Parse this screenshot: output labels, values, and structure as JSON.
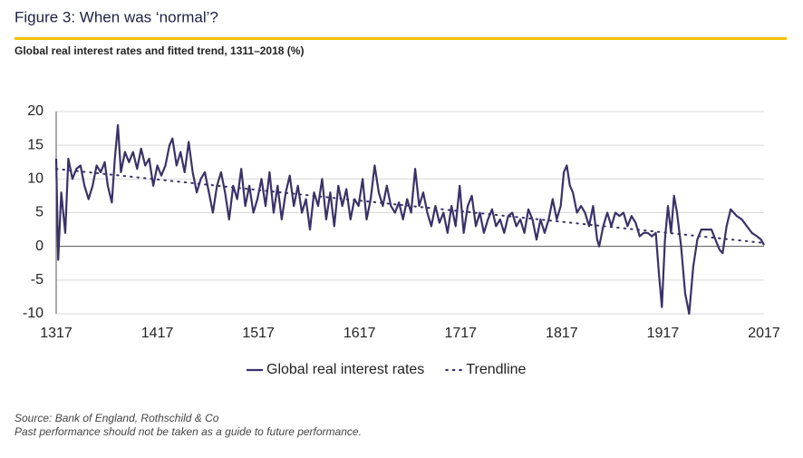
{
  "chart_data": {
    "type": "line",
    "title": "Figure 3: When was ‘normal’?",
    "subtitle": "Global real interest rates and fitted trend, 1311–2018 (%)",
    "source": "Source: Bank of England, Rothschild & Co",
    "note": "Past performance should not be taken as a guide to future performance.",
    "xlim": [
      1317,
      2017
    ],
    "xticks": [
      1317,
      1417,
      1517,
      1617,
      1717,
      1817,
      1917,
      2017
    ],
    "ylim": [
      -10,
      20
    ],
    "yticks": [
      -10,
      -5,
      0,
      5,
      10,
      15,
      20
    ],
    "grid": true,
    "legend": "bottom",
    "series": [
      {
        "name": "Global real interest rates",
        "color": "#3b3168",
        "style": "solid",
        "x": [
          1317,
          1319,
          1322,
          1326,
          1329,
          1333,
          1337,
          1341,
          1345,
          1349,
          1353,
          1357,
          1361,
          1365,
          1368,
          1372,
          1375,
          1378,
          1381,
          1385,
          1389,
          1393,
          1397,
          1401,
          1405,
          1409,
          1413,
          1417,
          1421,
          1425,
          1429,
          1432,
          1436,
          1440,
          1444,
          1448,
          1452,
          1456,
          1460,
          1464,
          1468,
          1472,
          1476,
          1480,
          1484,
          1488,
          1492,
          1496,
          1500,
          1504,
          1508,
          1512,
          1516,
          1520,
          1524,
          1528,
          1532,
          1536,
          1540,
          1544,
          1548,
          1552,
          1556,
          1560,
          1564,
          1568,
          1572,
          1576,
          1580,
          1584,
          1588,
          1592,
          1596,
          1600,
          1604,
          1608,
          1612,
          1616,
          1620,
          1624,
          1628,
          1632,
          1636,
          1640,
          1644,
          1648,
          1652,
          1656,
          1660,
          1664,
          1668,
          1672,
          1676,
          1680,
          1684,
          1688,
          1692,
          1696,
          1700,
          1704,
          1708,
          1712,
          1716,
          1720,
          1724,
          1728,
          1732,
          1736,
          1740,
          1744,
          1748,
          1752,
          1756,
          1760,
          1764,
          1768,
          1772,
          1776,
          1780,
          1784,
          1788,
          1792,
          1796,
          1800,
          1804,
          1808,
          1812,
          1816,
          1819,
          1822,
          1825,
          1828,
          1832,
          1836,
          1840,
          1844,
          1848,
          1852,
          1854,
          1858,
          1862,
          1866,
          1870,
          1874,
          1878,
          1882,
          1886,
          1890,
          1894,
          1898,
          1902,
          1906,
          1910,
          1913,
          1916,
          1919,
          1922,
          1925,
          1928,
          1931,
          1935,
          1939,
          1943,
          1947,
          1951,
          1955,
          1960,
          1965,
          1969,
          1973,
          1976,
          1980,
          1984,
          1990,
          1995,
          2000,
          2005,
          2010,
          2014,
          2017
        ],
        "values": [
          13,
          -2,
          8,
          2,
          13,
          10,
          11.5,
          12,
          9,
          7,
          9,
          12,
          11,
          12.5,
          9,
          6.5,
          13,
          18,
          11,
          14,
          12.5,
          14,
          11.5,
          14.5,
          12,
          13,
          9,
          12,
          10.5,
          12,
          15,
          16,
          12,
          14,
          11,
          15.5,
          11,
          8,
          10,
          11,
          8,
          5,
          9,
          11,
          8,
          4,
          9,
          7,
          11.5,
          6,
          9,
          5,
          7,
          10,
          6,
          11,
          5,
          9,
          4,
          8,
          10.5,
          6,
          9,
          5,
          7,
          2.5,
          8,
          6,
          10,
          4,
          8,
          3,
          9,
          6,
          8.5,
          4,
          7,
          6,
          10,
          4,
          7,
          12,
          8,
          6,
          9,
          6,
          5,
          6.5,
          4,
          7,
          5,
          11.5,
          6,
          8,
          5,
          3,
          6,
          3.5,
          5,
          2,
          6,
          3,
          9,
          2,
          6,
          7.5,
          3,
          5,
          2,
          4,
          5.5,
          3,
          4,
          2,
          4.5,
          5,
          3,
          4,
          2,
          5.5,
          4,
          1,
          4,
          2,
          4,
          7,
          4,
          6,
          11,
          12,
          9,
          8,
          5,
          6,
          5,
          3,
          6,
          1,
          0,
          3,
          5,
          3,
          5,
          4.5,
          5,
          3,
          4.5,
          3.5,
          1.5,
          2,
          2,
          1.5,
          2,
          -4,
          -9,
          1,
          6,
          2,
          7.5,
          5,
          0,
          -7,
          -10,
          -3,
          1,
          2.5,
          2.5,
          2.5,
          1,
          -0.5,
          -1,
          3,
          5.5,
          4.5,
          4,
          3,
          2,
          1.5,
          1,
          0.2
        ]
      },
      {
        "name": "Trendline",
        "color": "#3b3168",
        "style": "dotted",
        "x": [
          1317,
          2017
        ],
        "values": [
          11.5,
          0.5
        ]
      }
    ]
  }
}
